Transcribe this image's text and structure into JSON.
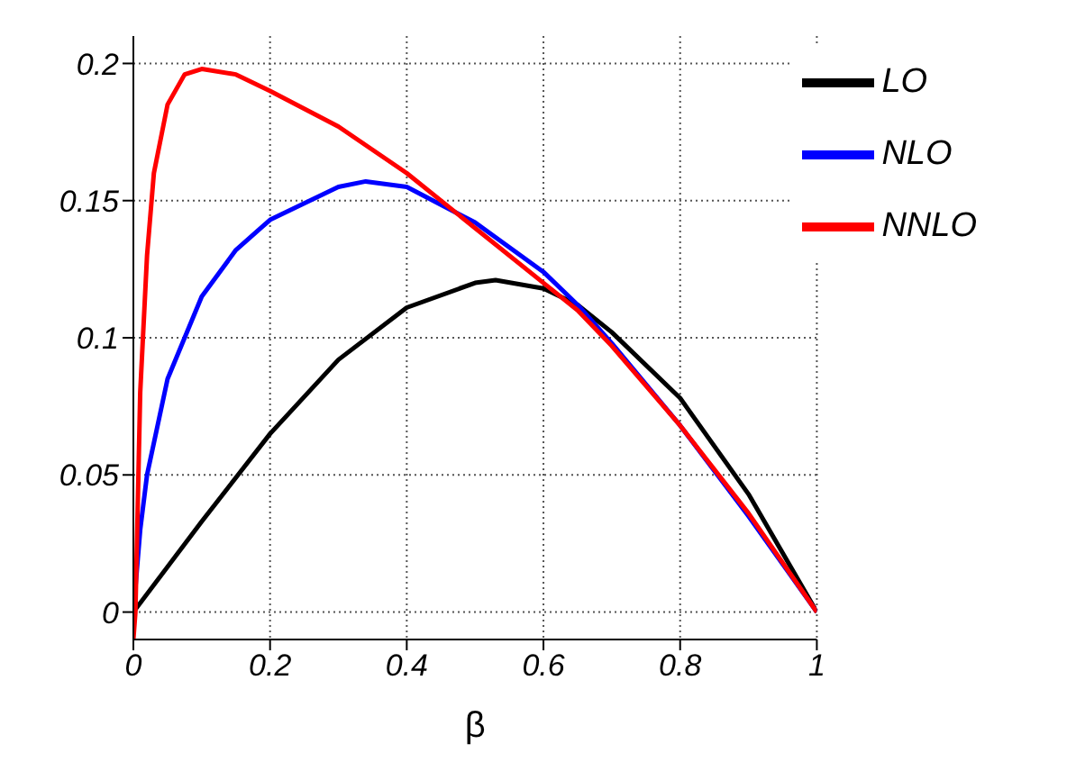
{
  "chart_data": {
    "type": "line",
    "xlabel": "β",
    "xlim": [
      0,
      1
    ],
    "xticks": [
      0,
      0.2,
      0.4,
      0.6,
      0.8,
      1
    ],
    "ylim": [
      -0.01,
      0.21
    ],
    "yticks": [
      0,
      0.05,
      0.1,
      0.15,
      0.2
    ],
    "grid": true,
    "legend": "top right",
    "marker": "none",
    "line_style": "solid",
    "series": [
      {
        "name": "LO",
        "color": "#000000",
        "x": [
          0,
          0.1,
          0.2,
          0.3,
          0.4,
          0.5,
          0.53,
          0.6,
          0.65,
          0.7,
          0.8,
          0.9,
          1
        ],
        "values": [
          0,
          0.033,
          0.065,
          0.092,
          0.111,
          0.12,
          0.121,
          0.118,
          0.112,
          0.102,
          0.078,
          0.043,
          0
        ]
      },
      {
        "name": "NLO",
        "color": "#0000ff",
        "x": [
          0,
          0.01,
          0.02,
          0.05,
          0.1,
          0.15,
          0.2,
          0.3,
          0.34,
          0.4,
          0.5,
          0.6,
          0.65,
          0.7,
          0.8,
          0.9,
          1
        ],
        "values": [
          0,
          0.03,
          0.05,
          0.085,
          0.115,
          0.132,
          0.143,
          0.155,
          0.157,
          0.155,
          0.142,
          0.124,
          0.112,
          0.098,
          0.068,
          0.035,
          0
        ]
      },
      {
        "name": "NNLO",
        "color": "#ff0000",
        "x": [
          0,
          0.003,
          0.01,
          0.02,
          0.03,
          0.05,
          0.075,
          0.1,
          0.15,
          0.2,
          0.3,
          0.4,
          0.5,
          0.6,
          0.65,
          0.7,
          0.8,
          0.9,
          1
        ],
        "values": [
          -0.01,
          0,
          0.08,
          0.13,
          0.16,
          0.185,
          0.196,
          0.198,
          0.196,
          0.19,
          0.177,
          0.16,
          0.14,
          0.12,
          0.11,
          0.097,
          0.068,
          0.036,
          0
        ]
      }
    ]
  }
}
